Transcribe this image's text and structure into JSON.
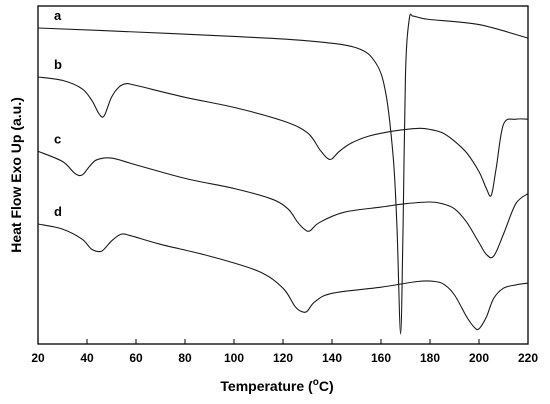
{
  "chart_data": {
    "type": "line",
    "title": "",
    "xlabel_main": "Temperature (",
    "xlabel_sup": "o",
    "xlabel_end": "C)",
    "ylabel": "Heat Flow Exo Up (a.u.)",
    "xlim": [
      20,
      220
    ],
    "ylim": [
      0,
      100
    ],
    "y_ticks_labeled": false,
    "x_ticks": [
      20,
      40,
      60,
      80,
      100,
      120,
      140,
      160,
      180,
      200,
      220
    ],
    "grid": false,
    "series": [
      {
        "name": "a",
        "x": [
          20,
          60,
          100,
          130,
          150,
          158,
          162,
          165,
          166.5,
          168,
          169,
          170,
          171.5,
          173,
          176,
          180,
          200,
          220
        ],
        "y": [
          93.5,
          92.3,
          91.0,
          89.7,
          87.6,
          83.0,
          74.0,
          55.0,
          35.0,
          3.0,
          35.0,
          80.0,
          96.0,
          97.0,
          96.5,
          96.0,
          94.5,
          90.5
        ]
      },
      {
        "name": "b",
        "x": [
          20,
          30,
          38,
          42,
          45,
          47,
          50,
          53,
          56,
          60,
          80,
          100,
          120,
          130,
          135,
          138,
          140,
          143,
          148,
          155,
          165,
          175,
          180,
          185,
          190,
          195,
          200,
          203,
          205,
          207,
          210,
          215,
          220
        ],
        "y": [
          79.0,
          78.0,
          75.5,
          72.0,
          68.0,
          67.5,
          73.0,
          76.0,
          77.0,
          76.5,
          73.0,
          70.0,
          66.0,
          62.5,
          57.5,
          55.0,
          54.8,
          57.0,
          59.5,
          61.5,
          63.0,
          63.8,
          63.5,
          62.5,
          60.0,
          56.5,
          51.0,
          46.0,
          44.0,
          52.0,
          65.0,
          66.5,
          66.5
        ]
      },
      {
        "name": "c",
        "x": [
          20,
          30,
          35,
          38,
          41,
          44,
          50,
          60,
          80,
          100,
          115,
          122,
          126,
          129,
          131,
          135,
          145,
          160,
          170,
          180,
          185,
          190,
          195,
          200,
          203,
          206,
          210,
          215,
          220
        ],
        "y": [
          57.0,
          54.0,
          50.5,
          50.0,
          52.5,
          54.5,
          55.0,
          53.0,
          49.0,
          46.0,
          43.0,
          40.0,
          36.0,
          33.8,
          33.5,
          36.0,
          39.0,
          40.5,
          41.5,
          42.0,
          41.5,
          40.0,
          36.0,
          30.0,
          26.5,
          26.0,
          32.5,
          41.5,
          44.5
        ]
      },
      {
        "name": "d",
        "x": [
          20,
          30,
          38,
          42,
          46,
          50,
          54,
          58,
          70,
          90,
          110,
          120,
          125,
          128,
          130,
          133,
          140,
          160,
          175,
          182,
          186,
          190,
          195,
          198,
          200,
          203,
          206,
          210,
          215,
          220
        ],
        "y": [
          35.5,
          34.0,
          31.0,
          28.0,
          27.5,
          30.5,
          32.5,
          32.0,
          29.5,
          26.0,
          21.5,
          16.5,
          11.0,
          9.5,
          9.8,
          12.5,
          15.0,
          16.8,
          18.5,
          18.5,
          17.5,
          14.5,
          8.0,
          5.0,
          4.5,
          8.0,
          13.5,
          16.5,
          17.5,
          18.0
        ]
      }
    ]
  }
}
